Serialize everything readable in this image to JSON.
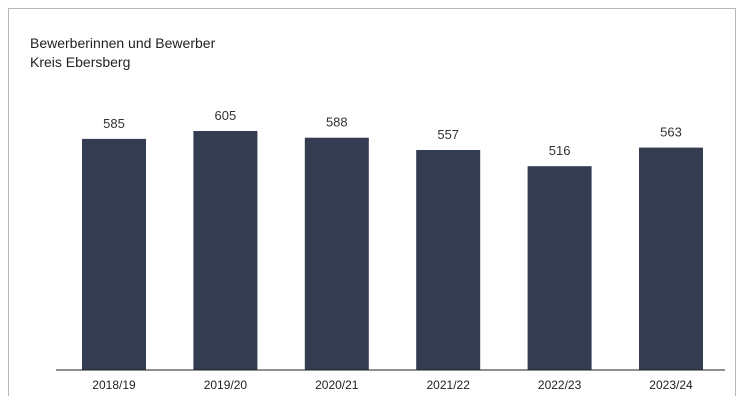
{
  "chart_data": {
    "type": "bar",
    "title": "Bewerberinnen und Bewerber",
    "subtitle": "Kreis Ebersberg",
    "categories": [
      "2018/19",
      "2019/20",
      "2020/21",
      "2021/22",
      "2022/23",
      "2023/24"
    ],
    "values": [
      585,
      605,
      588,
      557,
      516,
      563
    ],
    "bar_color": "#343c52",
    "ylim": [
      0,
      605
    ],
    "grid": false,
    "legend": "none"
  }
}
